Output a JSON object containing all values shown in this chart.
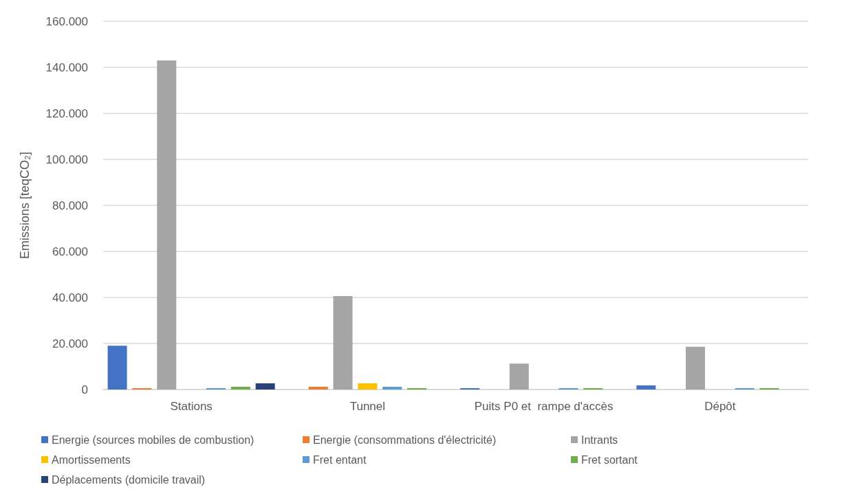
{
  "chart_data": {
    "type": "bar",
    "ylabel": "Emissions [teqCO₂]",
    "categories": [
      "Stations",
      "Tunnel",
      "Puits P0 et  rampe d'accès",
      "Dépôt"
    ],
    "series": [
      {
        "name": "Energie (sources mobiles de combustion)",
        "color": "#4472c4",
        "values": [
          19000,
          null,
          600,
          1800
        ]
      },
      {
        "name": "Energie (consommations d'électricité)",
        "color": "#ed7d31",
        "values": [
          600,
          1200,
          null,
          null
        ]
      },
      {
        "name": "Intrants",
        "color": "#a5a5a5",
        "values": [
          143000,
          40600,
          11300,
          18600
        ]
      },
      {
        "name": "Amortissements",
        "color": "#ffc000",
        "values": [
          null,
          2700,
          null,
          null
        ]
      },
      {
        "name": "Fret entant",
        "color": "#5b9bd5",
        "values": [
          600,
          1200,
          600,
          600
        ]
      },
      {
        "name": "Fret sortant",
        "color": "#70ad47",
        "values": [
          1200,
          600,
          600,
          600
        ]
      },
      {
        "name": "Déplacements (domicile travail)",
        "color": "#264478",
        "values": [
          2700,
          null,
          null,
          null
        ]
      }
    ],
    "ylim": [
      0,
      160000
    ],
    "yticks": [
      {
        "value": 0,
        "label": "0"
      },
      {
        "value": 20000,
        "label": "20.000"
      },
      {
        "value": 40000,
        "label": "40.000"
      },
      {
        "value": 60000,
        "label": "60.000"
      },
      {
        "value": 80000,
        "label": "80.000"
      },
      {
        "value": 100000,
        "label": "100.000"
      },
      {
        "value": 120000,
        "label": "120.000"
      },
      {
        "value": 140000,
        "label": "140.000"
      },
      {
        "value": 160000,
        "label": "160.000"
      }
    ],
    "grid": "y",
    "legend": "bottom"
  }
}
